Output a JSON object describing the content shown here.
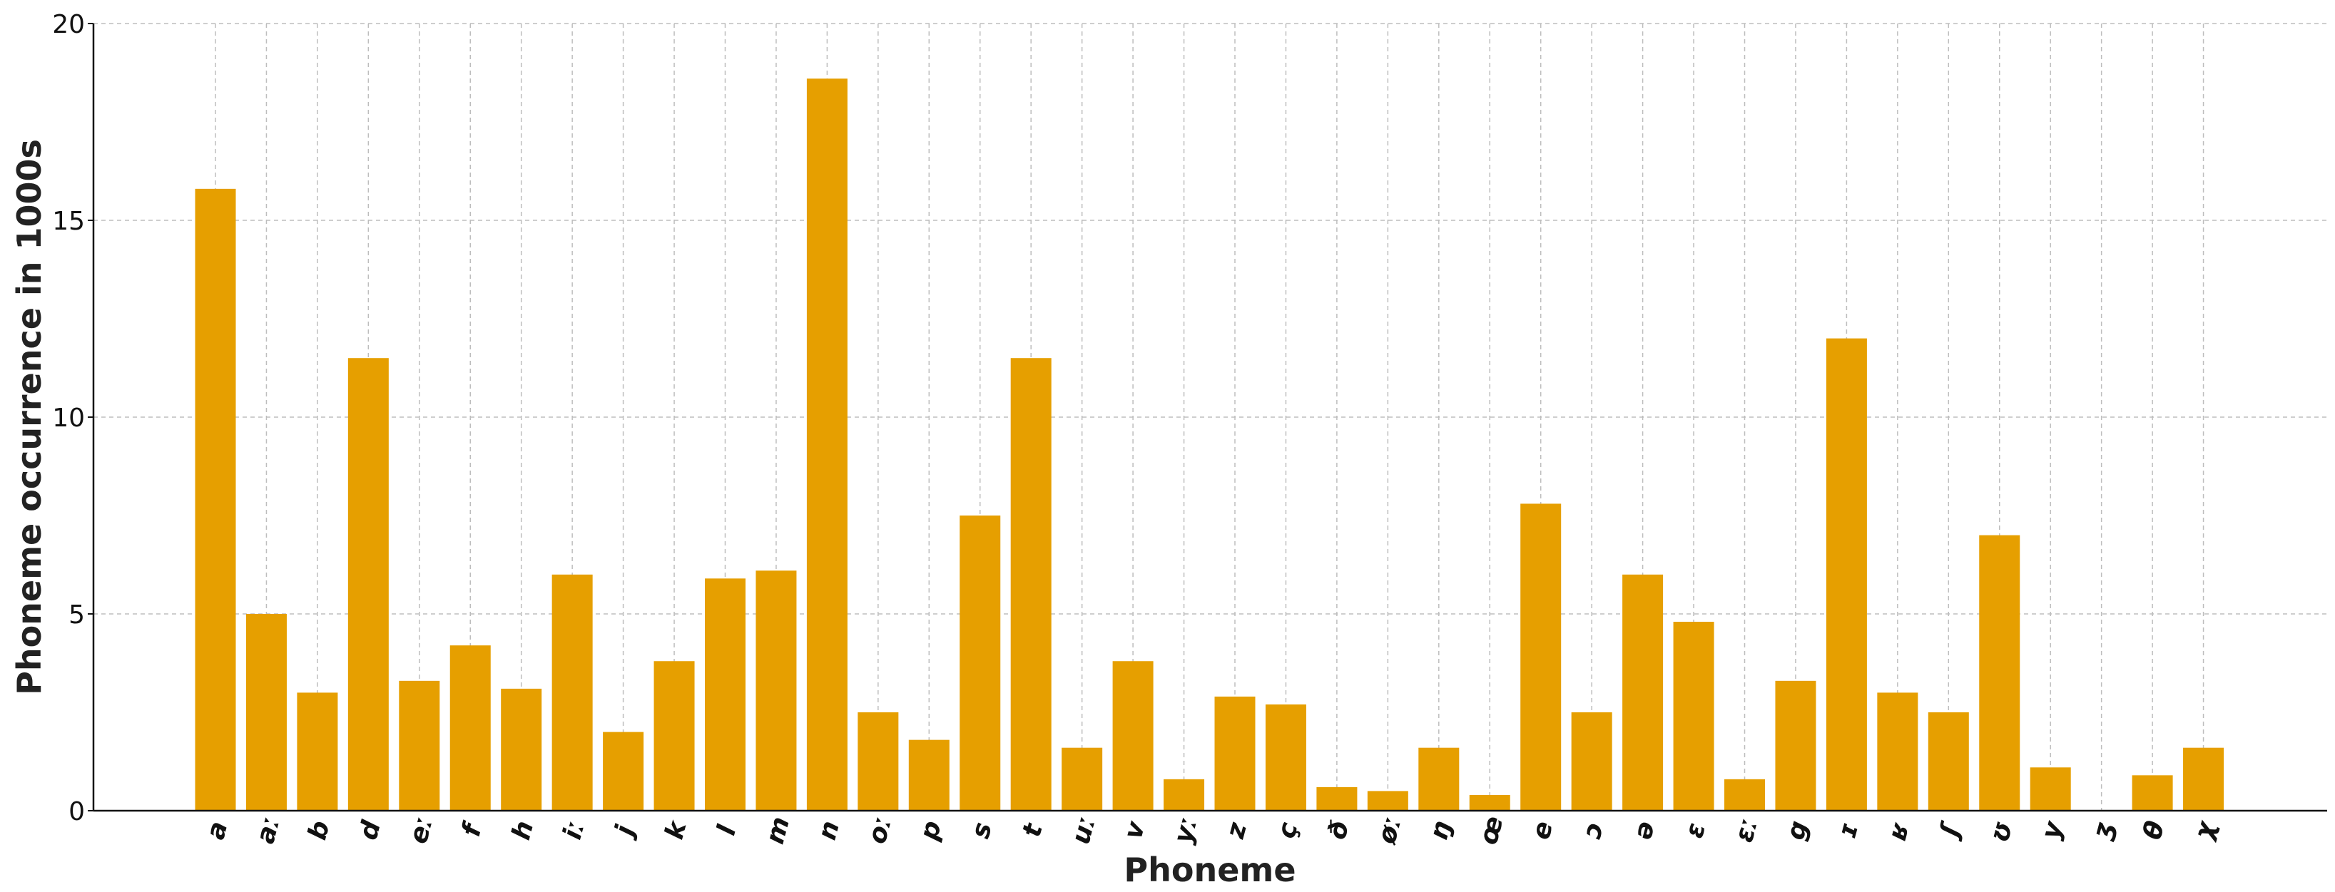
{
  "chart_data": {
    "type": "bar",
    "title": "",
    "xlabel": "Phoneme",
    "ylabel": "Phoneme occurrence in 1000s",
    "ylim": [
      0,
      20
    ],
    "yticks": [
      0,
      5,
      10,
      15,
      20
    ],
    "grid": true,
    "bar_color": "#E69F00",
    "categories": [
      "a",
      "aː",
      "b",
      "d",
      "eː",
      "f",
      "h",
      "iː",
      "j",
      "k",
      "l",
      "m",
      "n",
      "oː",
      "p",
      "s",
      "t",
      "uː",
      "v",
      "yː",
      "z",
      "ç",
      "ð",
      "øː",
      "ŋ",
      "œ",
      "e",
      "ɔ",
      "ə",
      "ɛ",
      "ɛː",
      "g",
      "ɪ",
      "ʁ",
      "ʃ",
      "ʊ",
      "y",
      "ʒ",
      "θ",
      "χ"
    ],
    "values": [
      15.8,
      5.0,
      3.0,
      11.5,
      3.3,
      4.2,
      3.1,
      6.0,
      2.0,
      3.8,
      5.9,
      6.1,
      18.6,
      2.5,
      1.8,
      7.5,
      11.5,
      1.6,
      3.8,
      0.8,
      2.9,
      2.7,
      0.6,
      0.5,
      1.6,
      0.4,
      7.8,
      2.5,
      6.0,
      4.8,
      0.8,
      3.3,
      12.0,
      3.0,
      2.5,
      7.0,
      1.1,
      0.0,
      0.9,
      1.6
    ]
  }
}
